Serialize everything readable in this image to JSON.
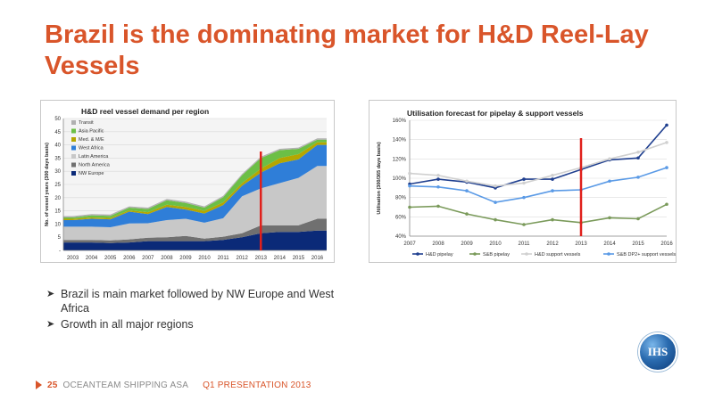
{
  "slide": {
    "title": "Brazil is the dominating market for H&D Reel-Lay Vessels",
    "bullets": [
      "Brazil is main market followed by NW Europe  and West Africa",
      "Growth in all major regions"
    ],
    "logo_text": "IHS",
    "footer": {
      "page_number": "25",
      "company": "OCEANTEAM SHIPPING ASA",
      "presentation": "Q1 PRESENTATION 2013"
    }
  },
  "colors": {
    "title": "#d9552a",
    "marker_line": "#e0201b"
  },
  "chart_data": [
    {
      "type": "area",
      "stacked": true,
      "title": "H&D reel vessel demand per region",
      "ylabel": "No. of vessel years (300 days basis)",
      "xlabel": "",
      "ylim": [
        0,
        50
      ],
      "ytick_labels": [
        "-",
        "5",
        "10",
        "15",
        "20",
        "25",
        "30",
        "35",
        "40",
        "45",
        "50"
      ],
      "grid": true,
      "legend": "top-left",
      "marker_year": "2013",
      "categories": [
        "2003",
        "2004",
        "2005",
        "2006",
        "2007",
        "2008",
        "2009",
        "2010",
        "2011",
        "2012",
        "2013",
        "2014",
        "2015",
        "2016"
      ],
      "series": [
        {
          "name": "NW Europe",
          "color": "#0b2a78",
          "values": [
            3,
            3,
            2.8,
            3,
            3.5,
            3.5,
            3.5,
            3.5,
            4,
            5,
            6.5,
            7,
            7,
            7.5
          ]
        },
        {
          "name": "North America",
          "color": "#707070",
          "values": [
            1,
            1,
            1,
            1.2,
            1.3,
            1.5,
            2,
            1,
            1.2,
            1.5,
            3,
            2.5,
            2.5,
            4.5
          ]
        },
        {
          "name": "Latin America",
          "color": "#c8c8c8",
          "values": [
            5,
            5,
            5,
            6,
            5.5,
            6.5,
            6.5,
            6,
            7,
            14,
            14,
            16,
            18,
            20
          ]
        },
        {
          "name": "West Africa",
          "color": "#2f7ed8",
          "values": [
            2.5,
            3,
            3,
            4.5,
            3.5,
            5,
            3.5,
            3.5,
            5,
            4,
            6,
            7.5,
            7,
            8
          ]
        },
        {
          "name": "Med. & M/E",
          "color": "#b5a600",
          "values": [
            0.5,
            0.5,
            0.5,
            0.5,
            0.7,
            0.8,
            1,
            1,
            1,
            1,
            1.5,
            2,
            2,
            1
          ]
        },
        {
          "name": "Asia Pacific",
          "color": "#6cbf46",
          "values": [
            0.5,
            0.8,
            0.8,
            1,
            1.2,
            1.7,
            1.5,
            1.2,
            2,
            3,
            4,
            3,
            2,
            1
          ]
        },
        {
          "name": "Transit",
          "color": "#b0b0b0",
          "values": [
            0.5,
            0.5,
            0.5,
            0.5,
            0.5,
            0.5,
            0.5,
            0.5,
            0.5,
            0.5,
            0.5,
            0.5,
            0.5,
            0.5
          ]
        }
      ]
    },
    {
      "type": "line",
      "title": "Utilisation forecast for pipelay & support vessels",
      "ylabel": "Utilisation (300/365 days basis)",
      "xlabel": "",
      "ylim": [
        40,
        160
      ],
      "ytick_labels": [
        "40%",
        "60%",
        "80%",
        "100%",
        "120%",
        "140%",
        "160%"
      ],
      "grid": true,
      "legend": "bottom",
      "marker_year": "2013",
      "categories": [
        "2007",
        "2008",
        "2009",
        "2010",
        "2011",
        "2012",
        "2013",
        "2014",
        "2015",
        "2016"
      ],
      "series": [
        {
          "name": "H&D pipelay",
          "color": "#1f3f8f",
          "values": [
            94,
            99,
            96,
            90,
            99,
            99,
            109,
            119,
            121,
            155
          ]
        },
        {
          "name": "S&B pipelay",
          "color": "#7a9a5a",
          "values": [
            70,
            71,
            63,
            57,
            52,
            57,
            54,
            59,
            58,
            73
          ]
        },
        {
          "name": "H&D support vessels",
          "color": "#d0d0d0",
          "values": [
            105,
            103,
            97,
            92,
            95,
            103,
            111,
            120,
            127,
            137
          ]
        },
        {
          "name": "S&B DP2+ support vessels",
          "color": "#5a9ae6",
          "values": [
            92,
            91,
            87,
            75,
            80,
            87,
            88,
            97,
            101,
            111
          ]
        }
      ]
    }
  ]
}
